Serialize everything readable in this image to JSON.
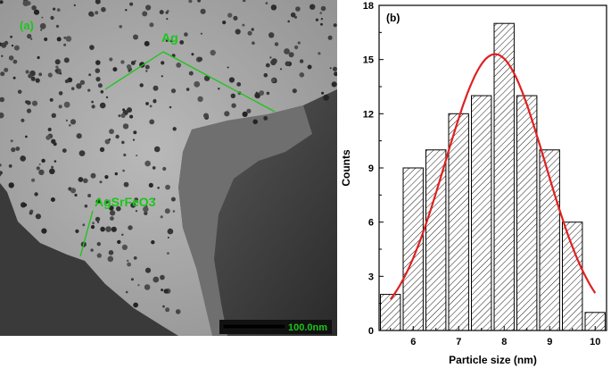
{
  "tem_panel": {
    "panel_label": "(a)",
    "label_ag": "Ag",
    "label_composite": "AgSrFeO3",
    "scale_bar_label": "100.0nm",
    "annotation_color": "#19c619"
  },
  "chart_data": {
    "type": "bar",
    "panel_label": "(b)",
    "xlabel": "Particle size (nm)",
    "ylabel": "Counts",
    "xlim": [
      5.25,
      10.25
    ],
    "ylim": [
      0,
      18
    ],
    "xticks": [
      6,
      7,
      8,
      9,
      10
    ],
    "yticks": [
      0,
      3,
      6,
      9,
      12,
      15,
      18
    ],
    "bin_width": 0.5,
    "bins": [
      5.5,
      6.0,
      6.5,
      7.0,
      7.5,
      8.0,
      8.5,
      9.0,
      9.5,
      10.0
    ],
    "values": [
      2,
      9,
      10,
      12,
      13,
      17,
      13,
      10,
      6,
      1
    ],
    "bar_fill": "diagonal hatch",
    "fit": {
      "type": "gaussian",
      "center": 7.8,
      "amplitude": 15.3,
      "sigma": 1.1,
      "x_range": [
        5.5,
        10.0
      ],
      "color": "#e02020"
    }
  }
}
